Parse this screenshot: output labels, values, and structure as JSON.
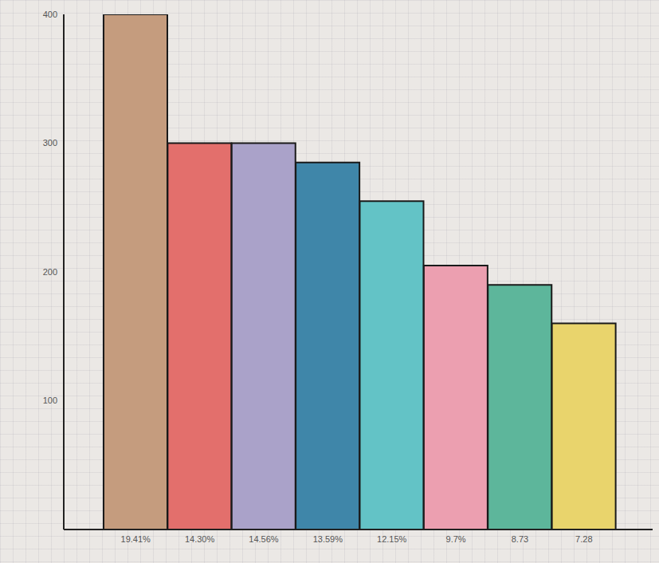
{
  "chart_data": {
    "type": "bar",
    "categories": [
      "19.41%",
      "14.30%",
      "14.56%",
      "13.59%",
      "12.15%",
      "9.7%",
      "8.73",
      "7.28"
    ],
    "values": [
      400,
      300,
      300,
      285,
      255,
      205,
      190,
      160
    ],
    "colors": [
      "#c59c7e",
      "#e36f6c",
      "#aaa2c9",
      "#3f86a9",
      "#63c3c6",
      "#ec9fb0",
      "#5db69b",
      "#e9d46c"
    ],
    "ylim": [
      0,
      400
    ],
    "yticks": [
      100,
      200,
      300,
      400
    ],
    "grid": false
  }
}
